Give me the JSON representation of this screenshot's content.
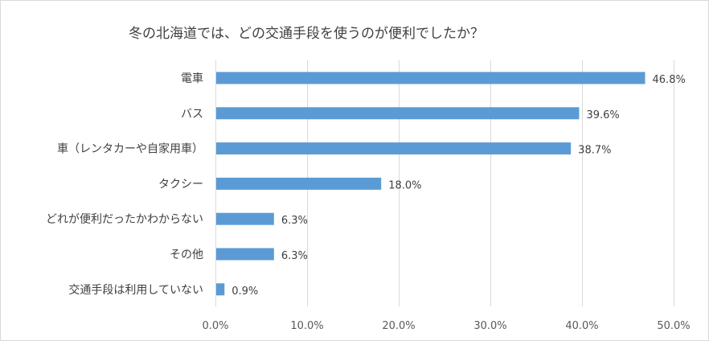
{
  "chart_data": {
    "type": "bar",
    "orientation": "horizontal",
    "title": "冬の北海道では、どの交通手段を使うのが便利でしたか？",
    "categories": [
      "電車",
      "バス",
      "車（レンタカーや自家用車）",
      "タクシー",
      "どれが便利だったかわからない",
      "その他",
      "交通手段は利用していない"
    ],
    "values": [
      46.8,
      39.6,
      38.7,
      18.0,
      6.3,
      6.3,
      0.9
    ],
    "value_labels": [
      "46.8%",
      "39.6%",
      "38.7%",
      "18.0%",
      "6.3%",
      "6.3%",
      "0.9%"
    ],
    "x_ticks": [
      0,
      10,
      20,
      30,
      40,
      50
    ],
    "x_tick_labels": [
      "0.0%",
      "10.0%",
      "20.0%",
      "30.0%",
      "40.0%",
      "50.0%"
    ],
    "xlim": [
      0,
      50
    ],
    "grid": true,
    "legend": "none",
    "bar_color": "#5b9bd5",
    "grid_color": "#d9d9d9"
  }
}
